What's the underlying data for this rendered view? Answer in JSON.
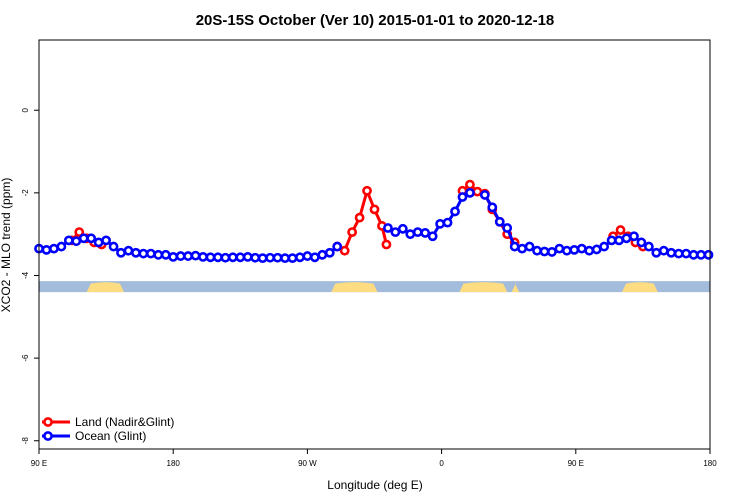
{
  "chart_data": {
    "type": "line",
    "title": "20S-15S October (Ver 10)   2015-01-01 to 2020-12-18",
    "xlabel": "Longitude (deg E)",
    "ylabel": "XCO2 - MLO trend (ppm)",
    "xlim": [
      90,
      540
    ],
    "ylim": [
      -8.2,
      1.7
    ],
    "xticks": [
      {
        "value": 90,
        "label": "90 E"
      },
      {
        "value": 180,
        "label": "180"
      },
      {
        "value": 270,
        "label": "90 W"
      },
      {
        "value": 360,
        "label": "0"
      },
      {
        "value": 450,
        "label": "90 E"
      },
      {
        "value": 540,
        "label": "180"
      }
    ],
    "yticks": [
      {
        "value": 0,
        "label": "0"
      },
      {
        "value": -2,
        "label": "-2"
      },
      {
        "value": -4,
        "label": "-4"
      },
      {
        "value": -6,
        "label": "-6"
      },
      {
        "value": -8,
        "label": "-8"
      }
    ],
    "legend_position": "bottom-left",
    "mask_band": {
      "y": -4.27,
      "ocean_color": "#a3bcdb",
      "land_color": "#fedd82",
      "land_segments": [
        [
          122,
          147
        ],
        [
          286,
          317
        ],
        [
          372,
          404
        ],
        [
          407,
          412
        ],
        [
          481,
          505
        ]
      ]
    },
    "series": [
      {
        "name": "Land (Nadir&Glint)",
        "color": "#ff0000",
        "segments": [
          [
            [
              112,
              -3.15
            ],
            [
              117,
              -2.95
            ],
            [
              122,
              -3.1
            ],
            [
              127,
              -3.2
            ],
            [
              132,
              -3.25
            ]
          ],
          [
            [
              290,
              -3.3
            ],
            [
              295,
              -3.4
            ],
            [
              300,
              -2.95
            ],
            [
              305,
              -2.6
            ],
            [
              310,
              -1.95
            ],
            [
              315,
              -2.4
            ],
            [
              320,
              -2.8
            ],
            [
              323,
              -3.25
            ]
          ],
          [
            [
              374,
              -1.95
            ],
            [
              379,
              -1.8
            ],
            [
              384,
              -1.97
            ],
            [
              389,
              -2.02
            ],
            [
              394,
              -2.4
            ],
            [
              399,
              -2.7
            ],
            [
              404,
              -3.0
            ],
            [
              409,
              -3.2
            ]
          ],
          [
            [
              475,
              -3.05
            ],
            [
              480,
              -2.9
            ],
            [
              485,
              -3.05
            ],
            [
              490,
              -3.2
            ],
            [
              495,
              -3.3
            ]
          ]
        ]
      },
      {
        "name": "Ocean (Glint)",
        "color": "#0000ff",
        "segments": [
          [
            [
              90,
              -3.35
            ],
            [
              95,
              -3.38
            ],
            [
              100,
              -3.35
            ],
            [
              105,
              -3.3
            ],
            [
              110,
              -3.15
            ],
            [
              115,
              -3.17
            ],
            [
              120,
              -3.1
            ],
            [
              125,
              -3.1
            ],
            [
              130,
              -3.2
            ],
            [
              135,
              -3.15
            ],
            [
              140,
              -3.3
            ],
            [
              145,
              -3.45
            ],
            [
              150,
              -3.4
            ],
            [
              155,
              -3.45
            ],
            [
              160,
              -3.47
            ],
            [
              165,
              -3.47
            ],
            [
              170,
              -3.5
            ],
            [
              175,
              -3.5
            ],
            [
              180,
              -3.55
            ],
            [
              185,
              -3.53
            ],
            [
              190,
              -3.53
            ],
            [
              195,
              -3.52
            ],
            [
              200,
              -3.55
            ],
            [
              205,
              -3.56
            ],
            [
              210,
              -3.56
            ],
            [
              215,
              -3.57
            ],
            [
              220,
              -3.56
            ],
            [
              225,
              -3.56
            ],
            [
              230,
              -3.55
            ],
            [
              235,
              -3.57
            ],
            [
              240,
              -3.58
            ],
            [
              245,
              -3.57
            ],
            [
              250,
              -3.57
            ],
            [
              255,
              -3.58
            ],
            [
              260,
              -3.58
            ],
            [
              265,
              -3.56
            ],
            [
              270,
              -3.53
            ],
            [
              275,
              -3.56
            ],
            [
              280,
              -3.5
            ],
            [
              285,
              -3.45
            ],
            [
              290,
              -3.3
            ]
          ],
          [
            [
              324,
              -2.85
            ],
            [
              329,
              -2.95
            ],
            [
              334,
              -2.87
            ],
            [
              339,
              -3.0
            ],
            [
              344,
              -2.95
            ],
            [
              349,
              -2.97
            ],
            [
              354,
              -3.05
            ],
            [
              359,
              -2.75
            ],
            [
              364,
              -2.72
            ],
            [
              369,
              -2.45
            ],
            [
              374,
              -2.1
            ],
            [
              379,
              -2.0
            ]
          ],
          [
            [
              389,
              -2.05
            ],
            [
              394,
              -2.35
            ],
            [
              399,
              -2.7
            ],
            [
              404,
              -2.85
            ],
            [
              409,
              -3.3
            ],
            [
              414,
              -3.35
            ],
            [
              419,
              -3.3
            ],
            [
              424,
              -3.4
            ],
            [
              429,
              -3.42
            ],
            [
              434,
              -3.43
            ],
            [
              439,
              -3.35
            ],
            [
              444,
              -3.4
            ],
            [
              449,
              -3.38
            ],
            [
              454,
              -3.35
            ],
            [
              459,
              -3.4
            ],
            [
              464,
              -3.37
            ],
            [
              469,
              -3.3
            ],
            [
              474,
              -3.15
            ],
            [
              479,
              -3.15
            ],
            [
              484,
              -3.1
            ],
            [
              489,
              -3.05
            ],
            [
              494,
              -3.2
            ],
            [
              499,
              -3.3
            ],
            [
              504,
              -3.45
            ],
            [
              509,
              -3.4
            ],
            [
              514,
              -3.45
            ],
            [
              519,
              -3.47
            ],
            [
              524,
              -3.47
            ],
            [
              529,
              -3.5
            ],
            [
              534,
              -3.5
            ],
            [
              539,
              -3.5
            ]
          ]
        ]
      }
    ]
  }
}
